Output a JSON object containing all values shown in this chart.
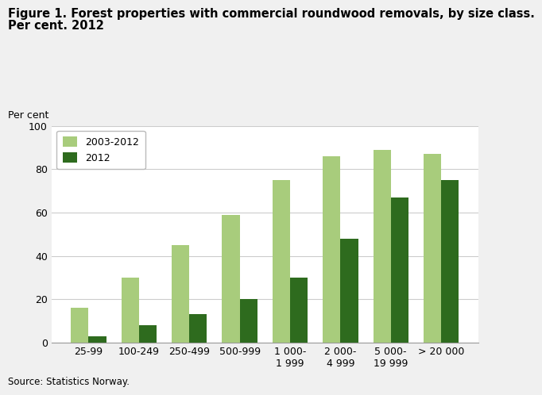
{
  "title_line1": "Figure 1. Forest properties with commercial roundwood removals, by size class.",
  "title_line2": "Per cent. 2012",
  "ylabel": "Per cent",
  "source": "Source: Statistics Norway.",
  "categories": [
    "25-99",
    "100-249",
    "250-499",
    "500-999",
    "1 000-\n1 999",
    "2 000-\n4 999",
    "5 000-\n19 999",
    "> 20 000"
  ],
  "series": {
    "2003-2012": [
      16,
      30,
      45,
      59,
      75,
      86,
      89,
      87
    ],
    "2012": [
      3,
      8,
      13,
      20,
      30,
      48,
      67,
      75
    ]
  },
  "color_light": "#a8cc7c",
  "color_dark": "#2e6b1e",
  "ylim": [
    0,
    100
  ],
  "yticks": [
    0,
    20,
    40,
    60,
    80,
    100
  ],
  "bar_width": 0.35,
  "legend_labels": [
    "2003-2012",
    "2012"
  ],
  "background_color": "#f0f0f0",
  "plot_bg_color": "#ffffff",
  "grid_color": "#cccccc",
  "title_fontsize": 10.5,
  "axis_label_fontsize": 9,
  "tick_fontsize": 9,
  "legend_fontsize": 9,
  "source_fontsize": 8.5
}
